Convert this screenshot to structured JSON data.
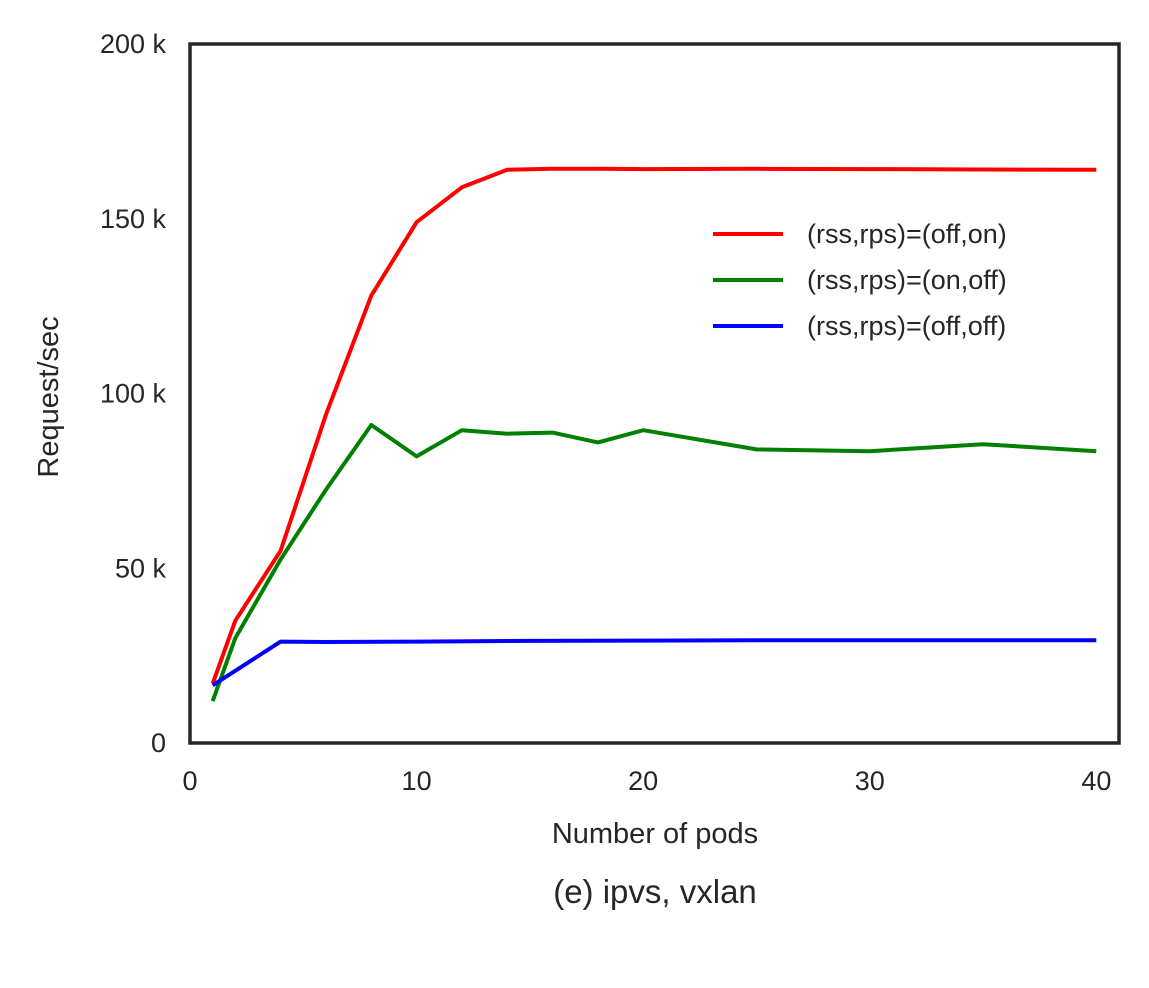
{
  "caption": "(e) ipvs, vxlan",
  "chart_data": {
    "type": "line",
    "title": "",
    "xlabel": "Number of pods",
    "ylabel": "Request/sec",
    "xlim": [
      0,
      41
    ],
    "ylim": [
      0,
      200000
    ],
    "xticks": [
      0,
      10,
      20,
      30,
      40
    ],
    "xtick_labels": [
      "0",
      "10",
      "20",
      "30",
      "40"
    ],
    "yticks": [
      0,
      50000,
      100000,
      150000,
      200000
    ],
    "ytick_labels": [
      "0",
      "50 k",
      "100 k",
      "150 k",
      "200 k"
    ],
    "grid": false,
    "legend_position": "upper-right",
    "series": [
      {
        "name": "(rss,rps)=(off,on)",
        "color": "#ff0000",
        "x": [
          1,
          2,
          4,
          6,
          8,
          10,
          12,
          14,
          16,
          18,
          20,
          25,
          30,
          35,
          40
        ],
        "y": [
          17000,
          35000,
          55000,
          94000,
          128000,
          149000,
          159000,
          164000,
          164300,
          164300,
          164200,
          164300,
          164200,
          164100,
          164000
        ]
      },
      {
        "name": "(rss,rps)=(on,off)",
        "color": "#008000",
        "x": [
          1,
          2,
          4,
          6,
          8,
          10,
          12,
          14,
          16,
          18,
          20,
          25,
          30,
          35,
          40
        ],
        "y": [
          12000,
          30000,
          52500,
          72500,
          91000,
          82000,
          89500,
          88500,
          88800,
          86000,
          89500,
          84000,
          83500,
          85500,
          83500
        ]
      },
      {
        "name": "(rss,rps)=(off,off)",
        "color": "#0000ff",
        "x": [
          1,
          4,
          6,
          10,
          15,
          20,
          25,
          30,
          35,
          40
        ],
        "y": [
          16500,
          29000,
          28900,
          29000,
          29200,
          29300,
          29400,
          29400,
          29400,
          29400
        ]
      }
    ]
  }
}
